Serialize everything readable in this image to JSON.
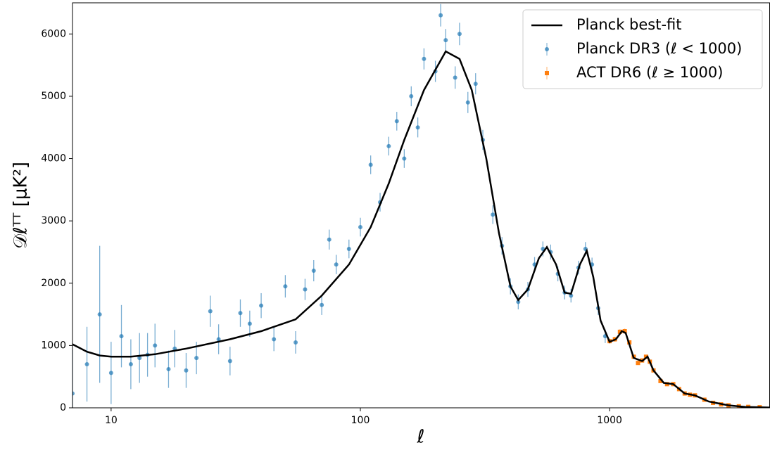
{
  "chart_data": {
    "type": "scatter-errorbar-line",
    "xlabel": "ℓ",
    "ylabel": "𝒟ℓᵀᵀ  [μK²]",
    "xlim": [
      7,
      4400
    ],
    "ylim": [
      0,
      6500
    ],
    "xlog": true,
    "xticks": [
      10,
      100,
      1000
    ],
    "yticks": [
      0,
      1000,
      2000,
      3000,
      4000,
      5000,
      6000
    ],
    "legend": "upper right",
    "series": [
      {
        "name": "Planck best-fit",
        "kind": "line",
        "color": "#000000",
        "x": [
          7,
          8,
          9,
          10,
          12,
          15,
          20,
          30,
          40,
          55,
          70,
          90,
          110,
          130,
          150,
          180,
          220,
          250,
          280,
          320,
          360,
          400,
          430,
          470,
          520,
          560,
          610,
          660,
          700,
          760,
          810,
          860,
          920,
          1000,
          1060,
          1120,
          1160,
          1250,
          1350,
          1420,
          1500,
          1650,
          1800,
          2000,
          2200,
          2500,
          3000,
          3500,
          4400
        ],
        "values": [
          1020,
          900,
          840,
          820,
          820,
          860,
          950,
          1100,
          1230,
          1420,
          1800,
          2300,
          2900,
          3600,
          4300,
          5100,
          5720,
          5600,
          5100,
          4000,
          2800,
          1950,
          1730,
          1900,
          2400,
          2580,
          2300,
          1850,
          1830,
          2300,
          2520,
          2100,
          1400,
          1060,
          1100,
          1230,
          1200,
          800,
          750,
          820,
          600,
          400,
          380,
          230,
          200,
          100,
          40,
          15,
          5
        ]
      },
      {
        "name": "Planck DR3 (ℓ < 1000)",
        "kind": "points",
        "marker": "circle",
        "color": "#1f77b4",
        "x": [
          7,
          8,
          9,
          10,
          11,
          12,
          13,
          14,
          15,
          17,
          18,
          20,
          22,
          25,
          27,
          30,
          33,
          36,
          40,
          45,
          50,
          55,
          60,
          65,
          70,
          75,
          80,
          90,
          100,
          110,
          120,
          130,
          140,
          150,
          160,
          170,
          180,
          200,
          210,
          220,
          240,
          250,
          270,
          290,
          310,
          340,
          370,
          400,
          430,
          470,
          500,
          540,
          580,
          620,
          660,
          700,
          750,
          800,
          850,
          900,
          960
        ],
        "values": [
          230,
          700,
          1500,
          560,
          1150,
          700,
          800,
          850,
          1000,
          620,
          950,
          600,
          800,
          1550,
          1100,
          750,
          1520,
          1350,
          1640,
          1100,
          1950,
          1050,
          1900,
          2200,
          1650,
          2700,
          2300,
          2550,
          2900,
          3900,
          3300,
          4200,
          4600,
          4000,
          5000,
          4500,
          5600,
          5400,
          6300,
          5900,
          5300,
          6000,
          4900,
          5200,
          4300,
          3100,
          2600,
          1950,
          1700,
          1900,
          2300,
          2550,
          2500,
          2150,
          1850,
          1800,
          2250,
          2550,
          2300,
          1600,
          1150
        ],
        "errors": [
          700,
          600,
          1100,
          500,
          500,
          400,
          400,
          350,
          350,
          300,
          300,
          280,
          260,
          250,
          240,
          230,
          220,
          210,
          200,
          190,
          180,
          180,
          170,
          170,
          160,
          160,
          155,
          150,
          150,
          150,
          150,
          150,
          150,
          150,
          160,
          160,
          170,
          170,
          180,
          180,
          180,
          180,
          170,
          170,
          160,
          150,
          140,
          130,
          120,
          120,
          120,
          120,
          120,
          120,
          110,
          110,
          110,
          110,
          110,
          110,
          110
        ]
      },
      {
        "name": "ACT DR6 (ℓ ≥ 1000)",
        "kind": "points",
        "marker": "square",
        "color": "#ff7f0e",
        "x": [
          1000,
          1050,
          1100,
          1150,
          1200,
          1250,
          1300,
          1350,
          1400,
          1450,
          1500,
          1600,
          1700,
          1800,
          1900,
          2000,
          2100,
          2200,
          2400,
          2600,
          2800,
          3000,
          3300,
          3600,
          4000
        ],
        "values": [
          1070,
          1100,
          1220,
          1230,
          1050,
          820,
          720,
          760,
          820,
          740,
          600,
          430,
          380,
          380,
          300,
          230,
          210,
          200,
          130,
          80,
          55,
          40,
          25,
          15,
          10
        ],
        "errors": [
          40,
          40,
          40,
          40,
          35,
          30,
          30,
          30,
          30,
          25,
          25,
          20,
          20,
          20,
          15,
          15,
          12,
          12,
          10,
          8,
          6,
          5,
          4,
          3,
          3
        ]
      }
    ]
  }
}
